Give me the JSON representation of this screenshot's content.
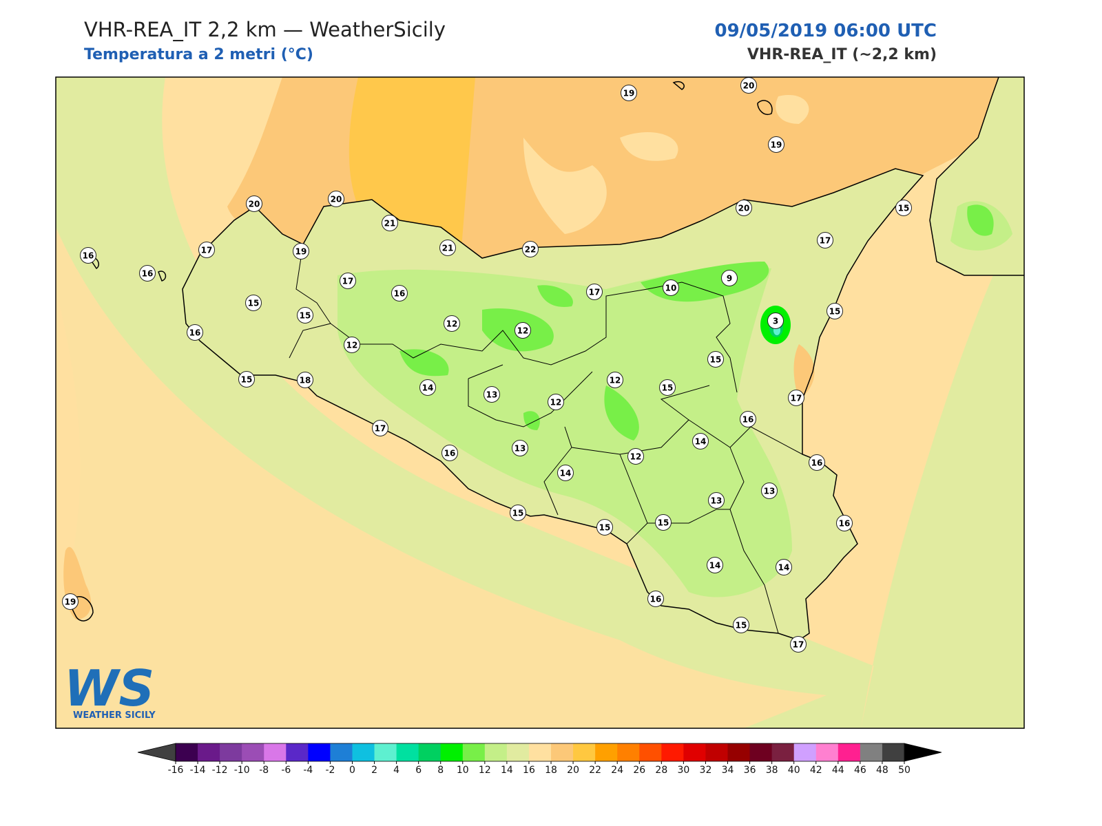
{
  "header": {
    "title": "VHR-REA_IT 2,2 km — WeatherSicily",
    "subtitle": "Temperatura a 2 metri (°C)",
    "datetime": "09/05/2019 06:00 UTC",
    "model": "VHR-REA_IT (~2,2 km)"
  },
  "map": {
    "stations": [
      19,
      20,
      19,
      20,
      20,
      21,
      21,
      22,
      20,
      15,
      16,
      16,
      17,
      19,
      17,
      17,
      16,
      15,
      15,
      17,
      10,
      9,
      3,
      15,
      16,
      12,
      12,
      12,
      15,
      15,
      18,
      14,
      13,
      12,
      12,
      15,
      17,
      16,
      17,
      16,
      13,
      14,
      12,
      14,
      16,
      13,
      13,
      15,
      15,
      15,
      16,
      14,
      14,
      16,
      15,
      17,
      19
    ]
  },
  "logo": {
    "mark": "WS",
    "text": "WEATHER SICILY"
  },
  "colorbar": {
    "ticks": [
      -16,
      -14,
      -12,
      -10,
      -8,
      -6,
      -4,
      -2,
      0,
      2,
      4,
      6,
      8,
      10,
      12,
      14,
      16,
      18,
      20,
      22,
      24,
      26,
      28,
      30,
      32,
      34,
      36,
      38,
      40,
      42,
      44,
      46,
      48,
      50
    ],
    "colors": [
      "#3c0050",
      "#6a1a8a",
      "#7d3a9e",
      "#9b4db5",
      "#d977e8",
      "#5a28c8",
      "#0000ff",
      "#1e7fd6",
      "#0fc0e0",
      "#5ef0d0",
      "#00e0a0",
      "#00d060",
      "#00f000",
      "#78ef48",
      "#c4ef88",
      "#e1eba0",
      "#ffe0a0",
      "#fcc878",
      "#ffc840",
      "#ffa000",
      "#ff8000",
      "#ff5000",
      "#ff1a00",
      "#e00000",
      "#c00000",
      "#960000",
      "#6e0020",
      "#7a2040",
      "#d0a0ff",
      "#ff80d0",
      "#ff2090",
      "#808080",
      "#404040"
    ],
    "under_color": "#404040",
    "over_color": "#000000"
  }
}
